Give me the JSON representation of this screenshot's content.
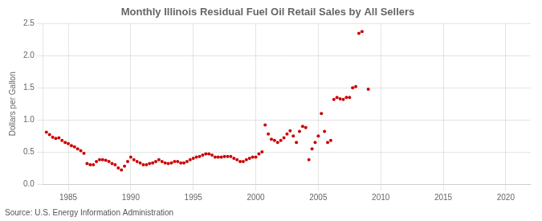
{
  "chart_data": {
    "type": "scatter",
    "title": "Monthly Illinois Residual Fuel Oil Retail Sales by All Sellers",
    "ylabel": "Dollars per Gallon",
    "annotation": "Source: U.S. Energy Information Administration",
    "color": "#cc0000",
    "grid": true,
    "xlim": [
      1983,
      2022
    ],
    "ylim": [
      0.0,
      2.5
    ],
    "xticks": [
      1985,
      1990,
      1995,
      2000,
      2005,
      2010,
      2015,
      2020
    ],
    "yticks": [
      {
        "value": 0.0,
        "label": "0.0"
      },
      0.5,
      {
        "value": 1.0,
        "label": "1.0"
      },
      1.5,
      {
        "value": 2.0,
        "label": "2.0"
      },
      2.5
    ],
    "x": [
      1983.25,
      1983.5,
      1983.75,
      1984.0,
      1984.25,
      1984.5,
      1984.75,
      1985.0,
      1985.25,
      1985.5,
      1985.75,
      1986.0,
      1986.25,
      1986.5,
      1986.75,
      1987.0,
      1987.25,
      1987.5,
      1987.75,
      1988.0,
      1988.25,
      1988.5,
      1988.75,
      1989.0,
      1989.25,
      1989.5,
      1989.75,
      1990.0,
      1990.25,
      1990.5,
      1990.75,
      1991.0,
      1991.25,
      1991.5,
      1991.75,
      1992.0,
      1992.25,
      1992.5,
      1992.75,
      1993.0,
      1993.25,
      1993.5,
      1993.75,
      1994.0,
      1994.25,
      1994.5,
      1994.75,
      1995.0,
      1995.25,
      1995.5,
      1995.75,
      1996.0,
      1996.25,
      1996.5,
      1996.75,
      1997.0,
      1997.25,
      1997.5,
      1997.75,
      1998.0,
      1998.25,
      1998.5,
      1998.75,
      1999.0,
      1999.25,
      1999.5,
      1999.75,
      2000.0,
      2000.25,
      2000.5,
      2000.75,
      2001.0,
      2001.25,
      2001.5,
      2001.75,
      2002.0,
      2002.25,
      2002.5,
      2002.75,
      2003.0,
      2003.25,
      2003.5,
      2003.75,
      2004.0,
      2004.25,
      2004.5,
      2004.75,
      2005.0,
      2005.25,
      2005.5,
      2005.75,
      2006.0,
      2006.25,
      2006.5,
      2006.75,
      2007.0,
      2007.25,
      2007.5,
      2007.75,
      2008.0,
      2008.25,
      2008.5,
      2009.0
    ],
    "values": [
      0.81,
      0.77,
      0.73,
      0.71,
      0.72,
      0.68,
      0.65,
      0.63,
      0.6,
      0.58,
      0.55,
      0.52,
      0.48,
      0.32,
      0.3,
      0.3,
      0.35,
      0.38,
      0.38,
      0.37,
      0.35,
      0.32,
      0.3,
      0.25,
      0.22,
      0.28,
      0.35,
      0.42,
      0.38,
      0.35,
      0.33,
      0.3,
      0.3,
      0.32,
      0.33,
      0.35,
      0.38,
      0.35,
      0.33,
      0.32,
      0.33,
      0.35,
      0.35,
      0.33,
      0.33,
      0.35,
      0.38,
      0.4,
      0.42,
      0.43,
      0.45,
      0.47,
      0.47,
      0.45,
      0.42,
      0.42,
      0.42,
      0.43,
      0.43,
      0.43,
      0.4,
      0.38,
      0.35,
      0.35,
      0.38,
      0.4,
      0.42,
      0.42,
      0.47,
      0.5,
      0.92,
      0.78,
      0.7,
      0.68,
      0.65,
      0.68,
      0.72,
      0.78,
      0.83,
      0.75,
      0.65,
      0.82,
      0.9,
      0.88,
      0.38,
      0.55,
      0.65,
      0.75,
      1.1,
      0.82,
      0.65,
      0.68,
      1.32,
      1.35,
      1.33,
      1.32,
      1.35,
      1.35,
      1.5,
      1.52,
      2.35,
      2.38,
      1.48
    ]
  }
}
